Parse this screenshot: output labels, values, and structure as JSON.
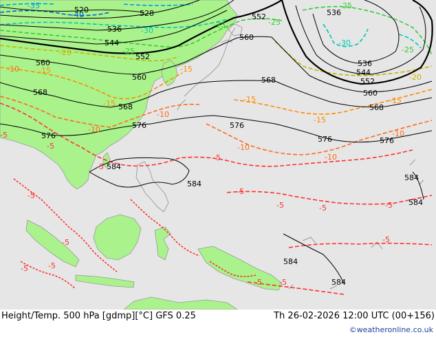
{
  "caption": {
    "title": "Height/Temp. 500 hPa [gdmp][°C] GFS 0.25",
    "valid_time": "Th 26-02-2026 12:00 UTC (00+156)"
  },
  "credit": "©weatheronline.co.uk",
  "colors": {
    "sea": "#e6e6e6",
    "land": "#aaf28c",
    "coast": "#999999",
    "height_contour": "#000000",
    "temp_m5": "#ff3030",
    "temp_m10": "#ff6a1a",
    "temp_m15": "#ff8c00",
    "temp_m20": "#c8b400",
    "temp_m25": "#33cc33",
    "temp_m30": "#00c8b4",
    "temp_m35": "#00a0e0",
    "temp_m40": "#0060d0"
  },
  "height_labels": [
    "520",
    "528",
    "536",
    "544",
    "552",
    "560",
    "568",
    "576",
    "584"
  ],
  "temp_labels": [
    "-5",
    "-10",
    "-15",
    "-20",
    "-25",
    "-30",
    "-35",
    "-40"
  ],
  "map_labels": {
    "h520": "520",
    "h528": "528",
    "h536a": "536",
    "h536b": "536",
    "h536c": "536",
    "h544a": "544",
    "h544b": "544",
    "h552a": "552",
    "h552b": "552",
    "h552c": "552",
    "h560a": "560",
    "h560b": "560",
    "h560c": "560",
    "h560d": "560",
    "h568a": "568",
    "h568b": "568",
    "h568c": "568",
    "h568d": "568",
    "h576a": "576",
    "h576b": "576",
    "h576c": "576",
    "h576d": "576",
    "h576e": "576",
    "h584a": "584",
    "h584b": "584",
    "h584c": "584",
    "h584d": "584",
    "h584e": "584",
    "h584f": "584",
    "t35": "-35",
    "t40": "-40",
    "t30a": "-30",
    "t30b": "-30",
    "t25a": "-25",
    "t25b": "-25",
    "t25c": "-25",
    "t25d": "-25",
    "t25e": "-25",
    "t20a": "-20",
    "t20b": "-20",
    "t15a": "-15",
    "t15b": "-15",
    "t15c": "-15",
    "t15d": "-15",
    "t15e": "-15",
    "t15f": "-15",
    "t10a": "-10",
    "t10b": "-10",
    "t10c": "-10",
    "t10d": "-10",
    "t10e": "-10",
    "t10f": "-10",
    "t5a": "-5",
    "t5b": "-5",
    "t5c": "-5",
    "t5d": "-5",
    "t5e": "-5",
    "t5f": "-5",
    "t5g": "-5",
    "t5h": "-5",
    "t5i": "-5",
    "t5j": "-5",
    "t5k": "-5",
    "t5l": "-5",
    "t5m": "-5",
    "t5n": "-5",
    "t5o": "-5"
  }
}
